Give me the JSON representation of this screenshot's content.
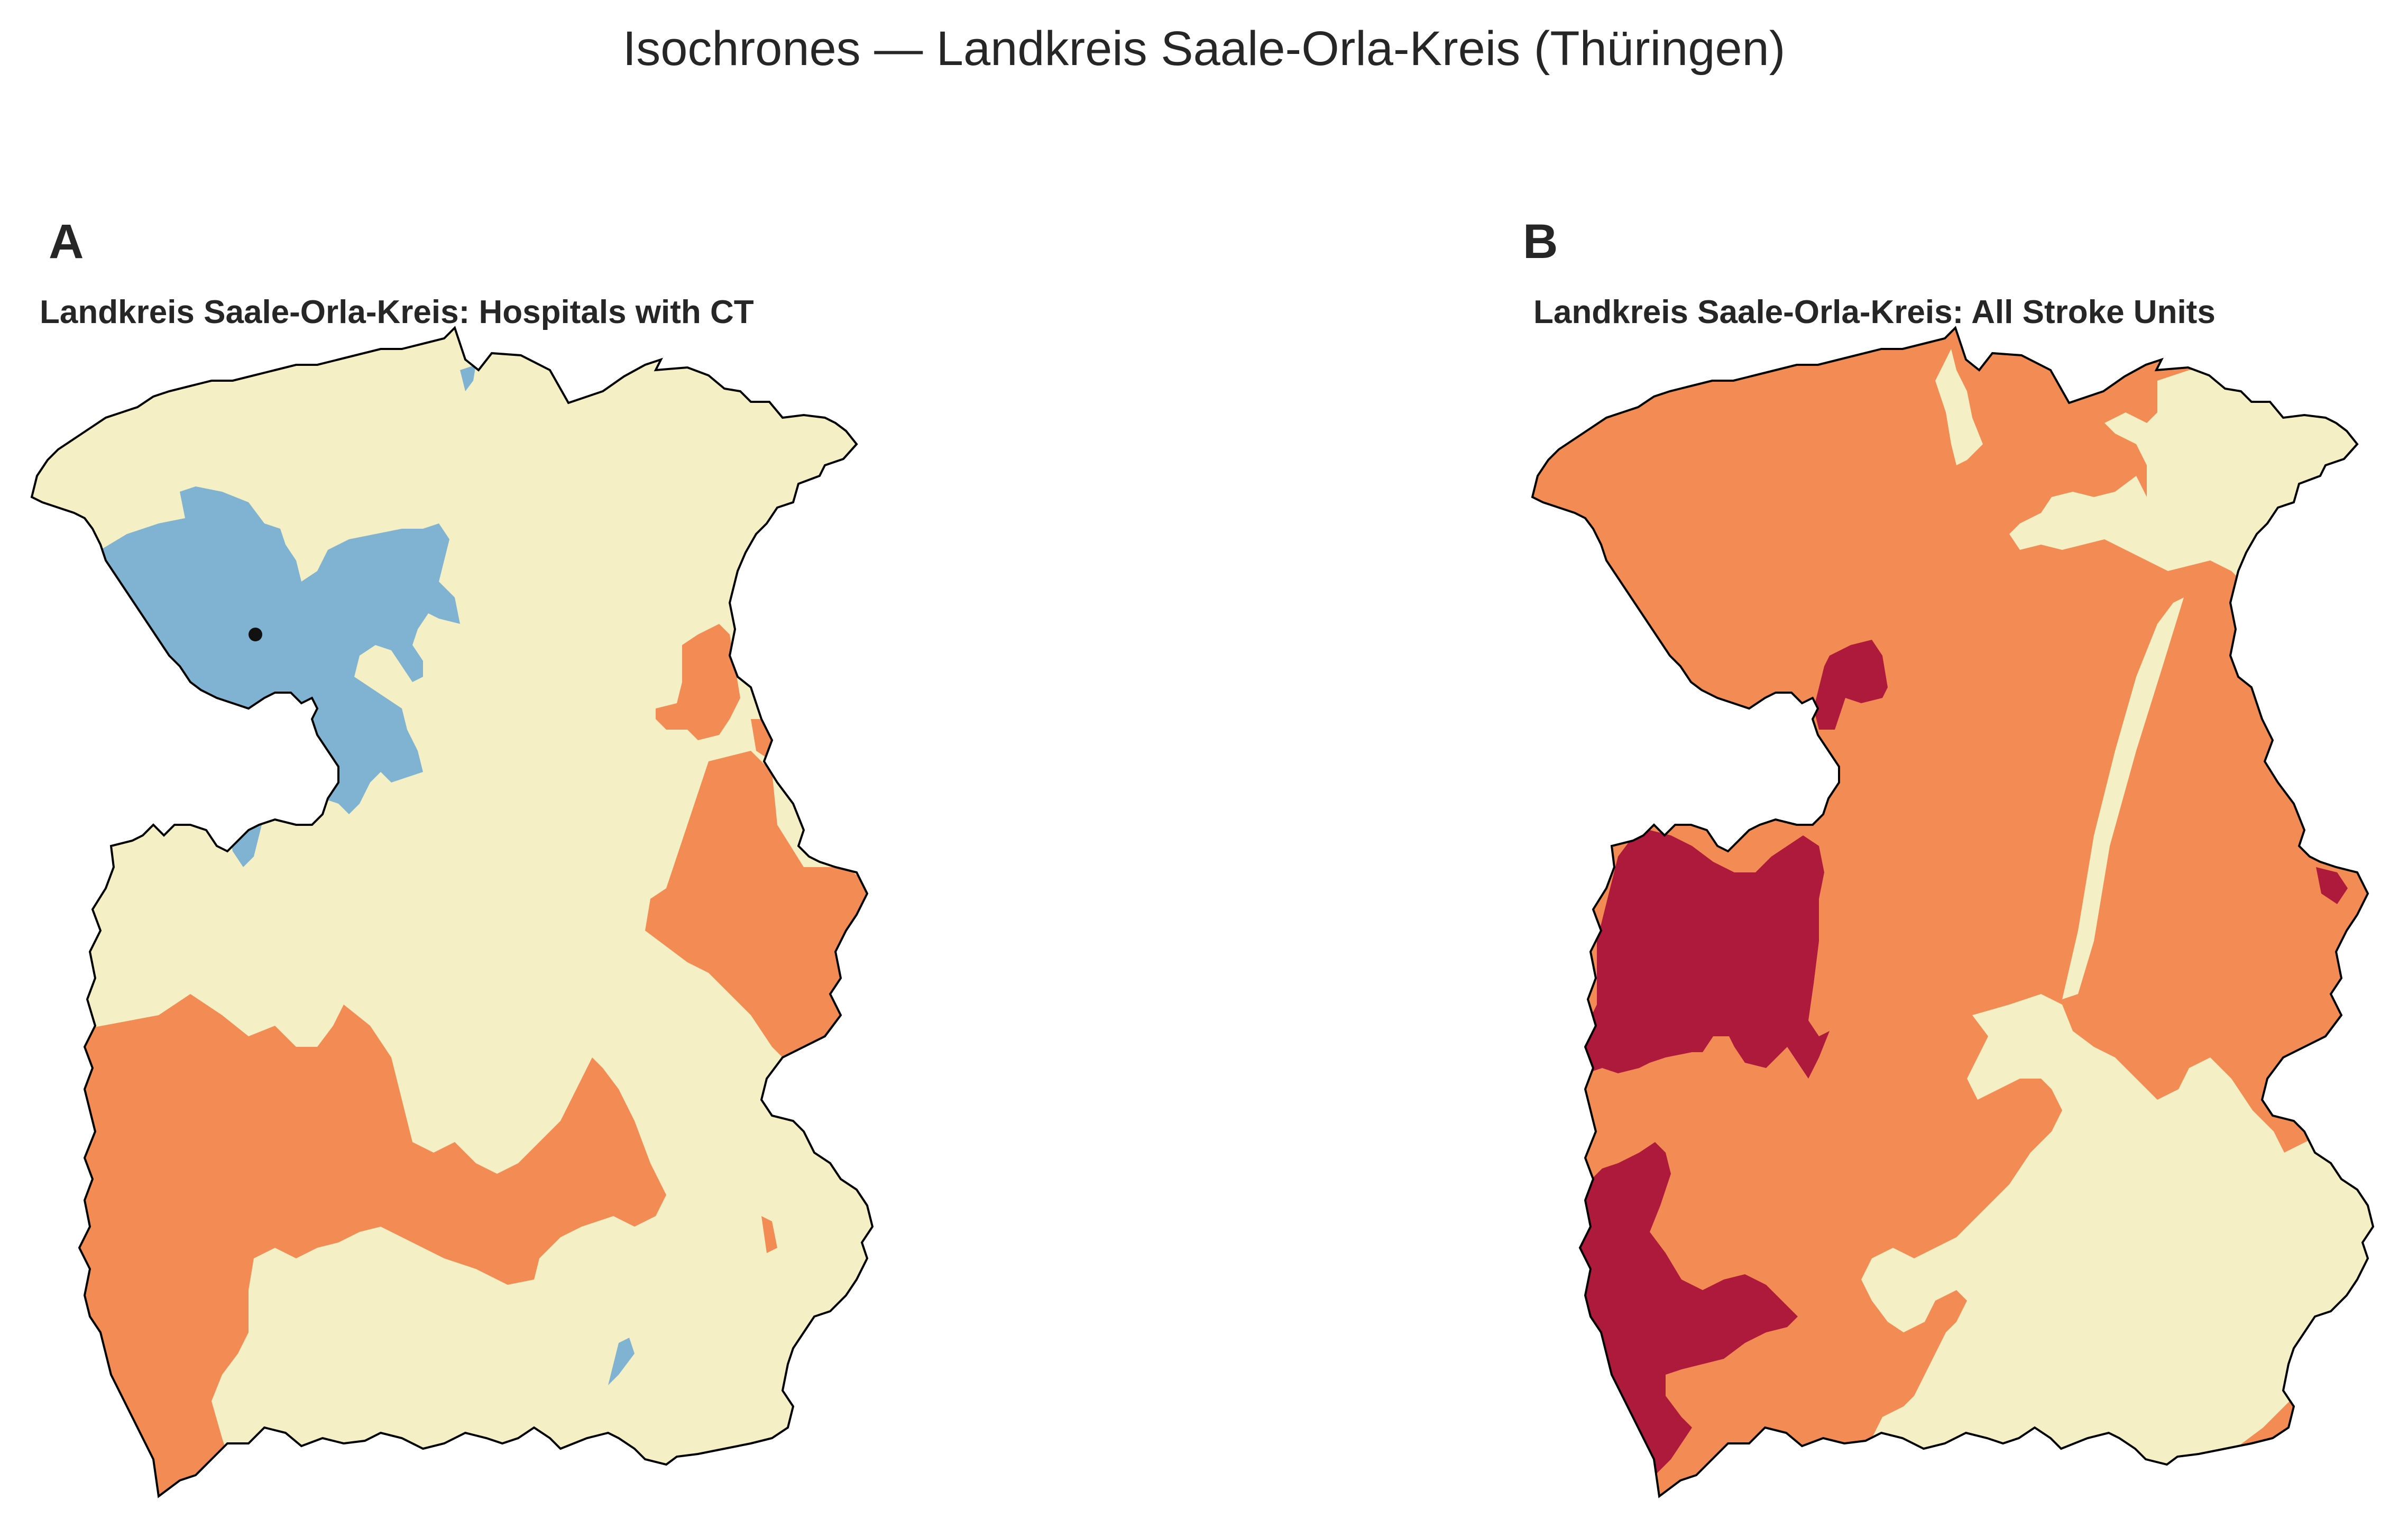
{
  "figure": {
    "suptitle": "Isochrones — Landkreis Saale-Orla-Kreis (Thüringen)"
  },
  "panels": [
    {
      "letter": "A",
      "title": "Landkreis Saale-Orla-Kreis: Hospitals with CT",
      "zones": [
        "blue",
        "cream",
        "orange"
      ],
      "markers": 1
    },
    {
      "letter": "B",
      "title": "Landkreis Saale-Orla-Kreis: All Stroke Units",
      "zones": [
        "crimson",
        "orange",
        "cream"
      ],
      "markers": 0
    }
  ],
  "colors": {
    "cream": "#f4efc4",
    "orange": "#f28c54",
    "blue": "#80b2d1",
    "crimson": "#ad1a3b",
    "border": "#000000",
    "marker": "#111111"
  }
}
